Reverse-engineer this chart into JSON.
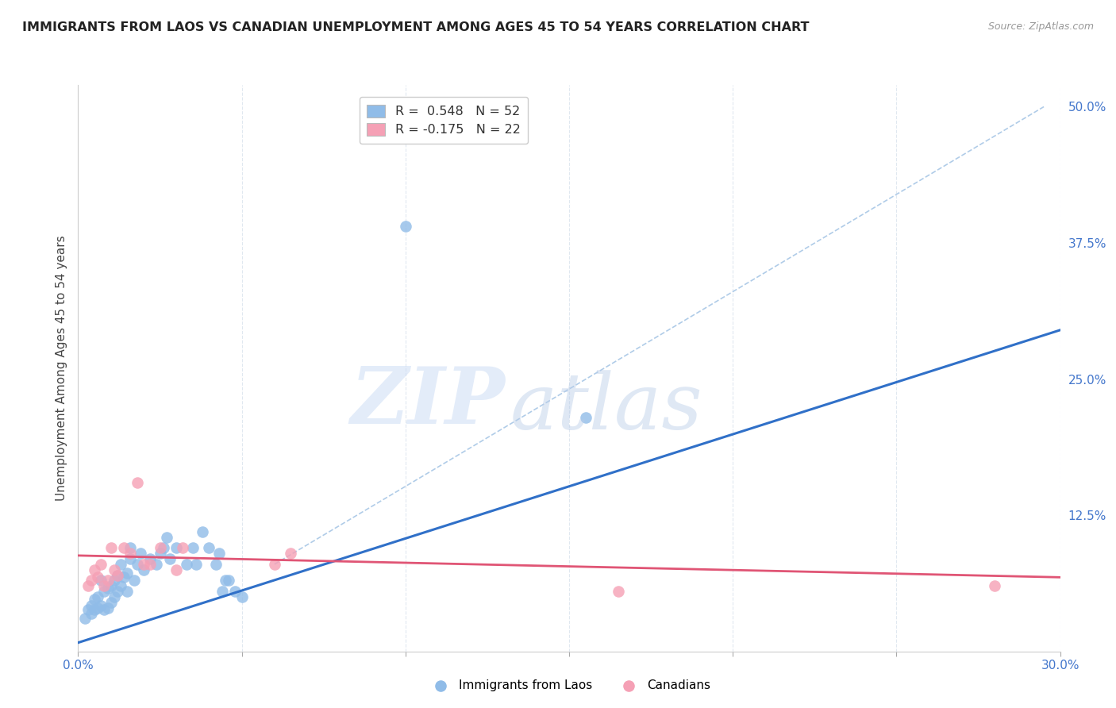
{
  "title": "IMMIGRANTS FROM LAOS VS CANADIAN UNEMPLOYMENT AMONG AGES 45 TO 54 YEARS CORRELATION CHART",
  "source": "Source: ZipAtlas.com",
  "ylabel": "Unemployment Among Ages 45 to 54 years",
  "xlim": [
    0.0,
    0.3
  ],
  "ylim": [
    0.0,
    0.52
  ],
  "xticks": [
    0.0,
    0.05,
    0.1,
    0.15,
    0.2,
    0.25,
    0.3
  ],
  "xticklabels": [
    "0.0%",
    "",
    "",
    "",
    "",
    "",
    "30.0%"
  ],
  "yticks_right": [
    0.0,
    0.125,
    0.25,
    0.375,
    0.5
  ],
  "ytick_right_labels": [
    "",
    "12.5%",
    "25.0%",
    "37.5%",
    "50.0%"
  ],
  "legend_top_labels": [
    "R =  0.548   N = 52",
    "R = -0.175   N = 22"
  ],
  "legend_top_colors": [
    "#a8c8f0",
    "#f5b8c8"
  ],
  "blue_scatter_x": [
    0.002,
    0.003,
    0.004,
    0.004,
    0.005,
    0.005,
    0.006,
    0.006,
    0.007,
    0.007,
    0.008,
    0.008,
    0.009,
    0.009,
    0.01,
    0.01,
    0.011,
    0.011,
    0.012,
    0.012,
    0.013,
    0.013,
    0.014,
    0.015,
    0.015,
    0.016,
    0.016,
    0.017,
    0.018,
    0.019,
    0.02,
    0.022,
    0.024,
    0.025,
    0.026,
    0.027,
    0.028,
    0.03,
    0.033,
    0.035,
    0.036,
    0.038,
    0.04,
    0.042,
    0.043,
    0.044,
    0.045,
    0.046,
    0.048,
    0.05,
    0.1,
    0.155
  ],
  "blue_scatter_y": [
    0.03,
    0.038,
    0.035,
    0.042,
    0.038,
    0.048,
    0.04,
    0.05,
    0.042,
    0.065,
    0.038,
    0.055,
    0.04,
    0.058,
    0.045,
    0.06,
    0.05,
    0.065,
    0.055,
    0.07,
    0.06,
    0.08,
    0.068,
    0.055,
    0.072,
    0.085,
    0.095,
    0.065,
    0.08,
    0.09,
    0.075,
    0.085,
    0.08,
    0.09,
    0.095,
    0.105,
    0.085,
    0.095,
    0.08,
    0.095,
    0.08,
    0.11,
    0.095,
    0.08,
    0.09,
    0.055,
    0.065,
    0.065,
    0.055,
    0.05,
    0.39,
    0.215
  ],
  "pink_scatter_x": [
    0.003,
    0.004,
    0.005,
    0.006,
    0.007,
    0.008,
    0.009,
    0.01,
    0.011,
    0.012,
    0.014,
    0.016,
    0.018,
    0.02,
    0.022,
    0.025,
    0.03,
    0.032,
    0.06,
    0.065,
    0.165,
    0.28
  ],
  "pink_scatter_y": [
    0.06,
    0.065,
    0.075,
    0.068,
    0.08,
    0.06,
    0.065,
    0.095,
    0.075,
    0.07,
    0.095,
    0.09,
    0.155,
    0.08,
    0.08,
    0.095,
    0.075,
    0.095,
    0.08,
    0.09,
    0.055,
    0.06
  ],
  "blue_line_x": [
    0.0,
    0.3
  ],
  "blue_line_y": [
    0.008,
    0.295
  ],
  "pink_line_x": [
    0.0,
    0.3
  ],
  "pink_line_y": [
    0.088,
    0.068
  ],
  "dashed_line_x": [
    0.06,
    0.295
  ],
  "dashed_line_y": [
    0.08,
    0.5
  ],
  "watermark_zip": "ZIP",
  "watermark_atlas": "atlas",
  "blue_color": "#90bce8",
  "blue_line_color": "#3070c8",
  "pink_color": "#f5a0b5",
  "pink_line_color": "#e05575",
  "dashed_color": "#b0cce8",
  "background_color": "#ffffff",
  "grid_color": "#e0e8f0"
}
